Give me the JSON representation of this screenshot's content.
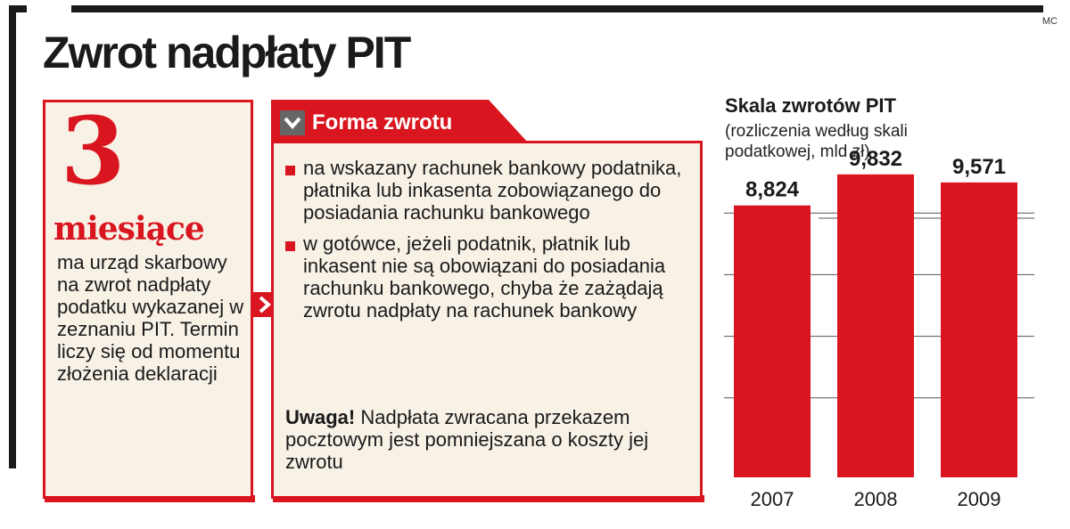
{
  "credit": "MC",
  "title": "Zwrot nadpłaty PIT",
  "left_panel": {
    "number": "3",
    "word": "miesiące",
    "body": "ma urząd skarbowy na zwrot nadpłaty podatku wykazanej w zeznaniu PIT. Termin liczy się od momentu złożenia deklaracji"
  },
  "mid_panel": {
    "tab_label": "Forma zwrotu",
    "bullets": [
      "na wskazany rachunek bankowy podatnika, płatnika lub inkasenta zobowiązanego do posiadania rachunku bankowego",
      "w gotówce, jeżeli podatnik, płatnik lub inkasent nie są obowiązani do posiadania rachunku bankowego, chyba że zażądają zwrotu nadpłaty na rachunek bankowy"
    ],
    "note_label": "Uwaga!",
    "note_text": "Nadpłata zwracana przekazem pocztowym jest pomniejszana o koszty jej zwrotu"
  },
  "colors": {
    "accent": "#d9161f",
    "panel_bg": "#f8f1e6",
    "text": "#1a1a1a",
    "tab_icon_bg": "#666666"
  },
  "icons": {
    "tab": "chevron-down-icon",
    "connector": "chevron-right-icon"
  },
  "chart_data": {
    "type": "bar",
    "title": "Skala zwrotów PIT",
    "subtitle": "(rozliczenia według skali podatkowej, mld zł)",
    "categories": [
      "2007",
      "2008",
      "2009"
    ],
    "values": [
      8.824,
      9.832,
      9.571
    ],
    "value_labels": [
      "8,824",
      "9,832",
      "9,571"
    ],
    "ylim": [
      0,
      10
    ],
    "grid": true,
    "bar_color": "#d9161f"
  }
}
